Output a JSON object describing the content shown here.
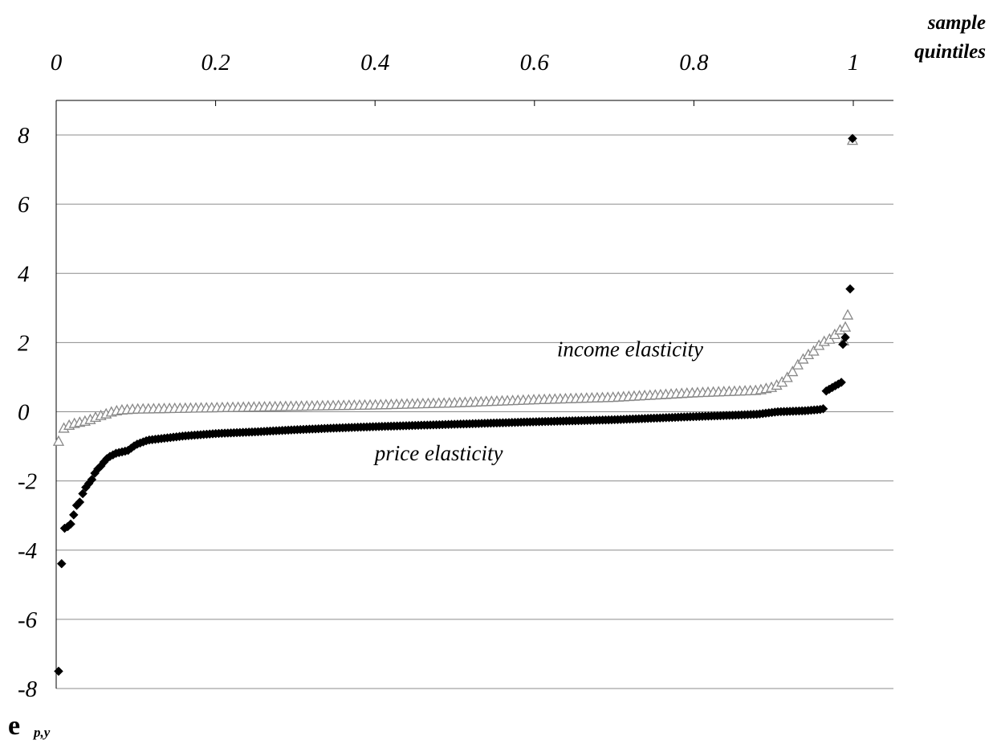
{
  "chart_data": {
    "type": "scatter",
    "title": "",
    "xlabel": [
      "sample",
      "quintiles"
    ],
    "ylabel": {
      "symbol": "e",
      "subscript": "p,y"
    },
    "xlim": [
      0,
      1
    ],
    "ylim": [
      -8,
      9
    ],
    "x_ticks": [
      "0",
      "0.2",
      "0.4",
      "0.6",
      "0.8",
      "1"
    ],
    "y_ticks": [
      "8",
      "6",
      "4",
      "2",
      "0",
      "-2",
      "-4",
      "-6",
      "-8"
    ],
    "grid": "horizontal",
    "x_axis_position": "top",
    "annotations": [
      {
        "text": "income elasticity",
        "x": 0.72,
        "y": 1.6
      },
      {
        "text": "price elasticity",
        "x": 0.48,
        "y": -1.4
      }
    ],
    "series": [
      {
        "marker": "diamond",
        "color": "#000000",
        "profile": [
          [
            0.003,
            -7.5
          ],
          [
            0.008,
            -3.4
          ],
          [
            0.012,
            -3.35
          ],
          [
            0.016,
            -3.3
          ],
          [
            0.02,
            -3.2
          ],
          [
            0.024,
            -2.75
          ],
          [
            0.03,
            -2.6
          ],
          [
            0.035,
            -2.25
          ],
          [
            0.04,
            -2.1
          ],
          [
            0.045,
            -1.95
          ],
          [
            0.05,
            -1.7
          ],
          [
            0.055,
            -1.6
          ],
          [
            0.06,
            -1.45
          ],
          [
            0.065,
            -1.32
          ],
          [
            0.075,
            -1.2
          ],
          [
            0.09,
            -1.12
          ],
          [
            0.1,
            -0.95
          ],
          [
            0.115,
            -0.82
          ],
          [
            0.13,
            -0.78
          ],
          [
            0.16,
            -0.7
          ],
          [
            0.2,
            -0.63
          ],
          [
            0.25,
            -0.58
          ],
          [
            0.3,
            -0.52
          ],
          [
            0.35,
            -0.47
          ],
          [
            0.4,
            -0.43
          ],
          [
            0.5,
            -0.36
          ],
          [
            0.6,
            -0.29
          ],
          [
            0.7,
            -0.23
          ],
          [
            0.8,
            -0.14
          ],
          [
            0.85,
            -0.1
          ],
          [
            0.88,
            -0.07
          ],
          [
            0.905,
            0.0
          ],
          [
            0.94,
            0.03
          ],
          [
            0.96,
            0.07
          ],
          [
            0.964,
            0.1
          ],
          [
            0.966,
            0.6
          ],
          [
            0.975,
            0.72
          ],
          [
            0.985,
            0.85
          ]
        ],
        "extra_points": [
          [
            0.987,
            1.95
          ],
          [
            0.99,
            2.15
          ],
          [
            0.996,
            3.55
          ],
          [
            0.999,
            7.9
          ]
        ]
      },
      {
        "marker": "triangle",
        "color": "#888888",
        "profile": [
          [
            0.003,
            -0.85
          ],
          [
            0.01,
            -0.45
          ],
          [
            0.015,
            -0.4
          ],
          [
            0.02,
            -0.35
          ],
          [
            0.03,
            -0.3
          ],
          [
            0.04,
            -0.25
          ],
          [
            0.05,
            -0.15
          ],
          [
            0.06,
            -0.08
          ],
          [
            0.07,
            0.0
          ],
          [
            0.08,
            0.05
          ],
          [
            0.1,
            0.08
          ],
          [
            0.2,
            0.12
          ],
          [
            0.3,
            0.16
          ],
          [
            0.4,
            0.2
          ],
          [
            0.5,
            0.26
          ],
          [
            0.6,
            0.35
          ],
          [
            0.7,
            0.42
          ],
          [
            0.8,
            0.55
          ],
          [
            0.88,
            0.62
          ],
          [
            0.9,
            0.72
          ],
          [
            0.91,
            0.85
          ],
          [
            0.92,
            1.05
          ],
          [
            0.93,
            1.35
          ],
          [
            0.94,
            1.6
          ],
          [
            0.95,
            1.75
          ],
          [
            0.96,
            2.0
          ],
          [
            0.97,
            2.1
          ],
          [
            0.98,
            2.3
          ],
          [
            0.985,
            2.4
          ],
          [
            0.99,
            2.45
          ]
        ],
        "extra_points": [
          [
            0.988,
            2.05
          ],
          [
            0.993,
            2.8
          ],
          [
            0.999,
            7.85
          ]
        ]
      }
    ]
  }
}
